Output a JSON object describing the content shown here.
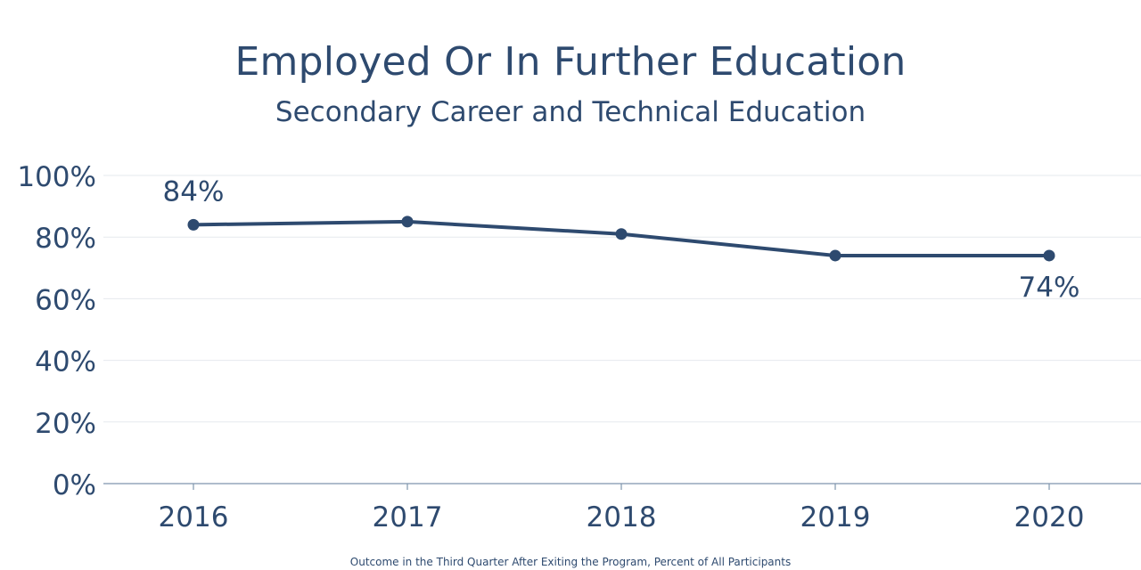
{
  "chart_data": {
    "type": "line",
    "title": "Employed Or In Further Education",
    "subtitle": "Secondary Career and Technical Education",
    "footnote": "Outcome in the Third Quarter After Exiting the Program, Percent of All Participants",
    "categories": [
      "2016",
      "2017",
      "2018",
      "2019",
      "2020"
    ],
    "series": [
      {
        "values": [
          84,
          85,
          81,
          74,
          74
        ]
      }
    ],
    "data_labels": [
      {
        "index": 0,
        "text": "84%",
        "position": "above"
      },
      {
        "index": 4,
        "text": "74%",
        "position": "below"
      }
    ],
    "y_ticks": [
      "0%",
      "20%",
      "40%",
      "60%",
      "80%",
      "100%"
    ],
    "ylim": [
      0,
      100
    ],
    "grid": true,
    "legend": "none",
    "colors": {
      "series": "#2e4a6f",
      "grid": "#e6e9ee",
      "axis": "#7f95ad",
      "text": "#2e4a6f"
    }
  }
}
